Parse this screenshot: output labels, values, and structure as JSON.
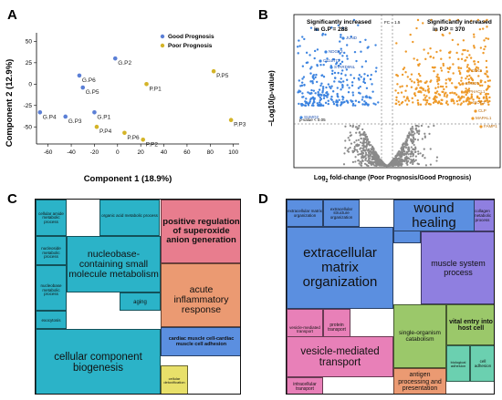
{
  "panels": {
    "a": "A",
    "b": "B",
    "c": "C",
    "d": "D"
  },
  "pca": {
    "xlabel": "Component 1 (18.9%)",
    "ylabel": "Component 2 (12.9%)",
    "xticks": [
      "-60",
      "-40",
      "-20",
      "0",
      "20",
      "40",
      "60",
      "80",
      "100"
    ],
    "yticks": [
      "50",
      "25",
      "0",
      "-25",
      "-50"
    ],
    "legend": [
      {
        "label": "Good Prognosis",
        "color": "#5b7fd6"
      },
      {
        "label": "Poor Prognosis",
        "color": "#d4b428"
      }
    ],
    "good": [
      {
        "label": "G.P2",
        "x": -2,
        "y": 30
      },
      {
        "label": "G.P6",
        "x": -33,
        "y": 10
      },
      {
        "label": "G.P5",
        "x": -30,
        "y": -4
      },
      {
        "label": "G.P4",
        "x": -67,
        "y": -33
      },
      {
        "label": "G.P3",
        "x": -45,
        "y": -38
      },
      {
        "label": "G.P1",
        "x": -20,
        "y": -33
      }
    ],
    "poor": [
      {
        "label": "P.P5",
        "x": 83,
        "y": 15
      },
      {
        "label": "P.P1",
        "x": 25,
        "y": 0
      },
      {
        "label": "P.P3",
        "x": 98,
        "y": -42
      },
      {
        "label": "P.P4",
        "x": -18,
        "y": -50
      },
      {
        "label": "P.P6",
        "x": 6,
        "y": -57
      },
      {
        "label": "P.P2",
        "x": 22,
        "y": -65
      }
    ]
  },
  "volcano": {
    "xlabel": "Log",
    "xlabel_sub": "2",
    "xlabel_rest": " fold-change (Poor Prognosis/Good Prognosis)",
    "ylabel": "−Log10(p-value)",
    "left_title": "Significantly increased",
    "left_sub": "in G.P = 288",
    "right_title": "Significantly increased",
    "right_sub": "in P.P = 370",
    "fc_label": "FC = 1.5",
    "pval_label": "p-value < 0.05",
    "left_genes": [
      "JUND",
      "NDGX3",
      "C11orf73",
      "STARD9NL",
      "SUMO2"
    ],
    "right_genes": [
      "CBX3",
      "SMS21",
      "PHACL1",
      "ISOC3",
      "CLP",
      "MAPAL1",
      "FAMP1"
    ],
    "colors": {
      "left": "#3d84e0",
      "right": "#ee9a2a",
      "ns": "#8a8a8a"
    }
  },
  "treemap_c": {
    "cells": [
      {
        "text": "cellular amide metabolic process",
        "c": "#2bb3c8"
      },
      {
        "text": "organic acid metabolic process",
        "c": "#2bb3c8"
      },
      {
        "text": "positive regulation of superoxide anion generation",
        "c": "#e87d8e"
      },
      {
        "text": "nucleoside metabolic process",
        "c": "#2bb3c8"
      },
      {
        "text": "nucleobase-containing small molecule metabolism",
        "c": "#2bb3c8"
      },
      {
        "text": "acute inflammatory response",
        "c": "#eb9a72"
      },
      {
        "text": "nucleobase metabolic process",
        "c": "#2bb3c8"
      },
      {
        "text": "aging",
        "c": "#2bb3c8"
      },
      {
        "text": "cardiac muscle cell-cardiac muscle cell adhesion",
        "c": "#5b8fe0"
      },
      {
        "text": "exocytosis",
        "c": "#2bb3c8"
      },
      {
        "text": "cellular component biogenesis",
        "c": "#2bb3c8"
      },
      {
        "text": "cellular detoxification",
        "c": "#e8e06a"
      }
    ]
  },
  "treemap_d": {
    "cells": [
      {
        "text": "extracellular matrix organization",
        "c": "#5b8fe0"
      },
      {
        "text": "extracellular structure organization",
        "c": "#5b8fe0"
      },
      {
        "text": "wound healing",
        "c": "#5b8fe0"
      },
      {
        "text": "muscle system process",
        "c": "#8f7fe0"
      },
      {
        "text": "collagen metabolic process",
        "c": "#8f7fe0"
      },
      {
        "text": "extracellular matrix organization",
        "c": "#5b8fe0"
      },
      {
        "text": "wound healing",
        "c": "#5b8fe0"
      },
      {
        "text": "muscle system process",
        "c": "#8f7fe0"
      },
      {
        "text": "vesicle-mediated transport",
        "c": "#e880b8"
      },
      {
        "text": "protein transport",
        "c": "#e880b8"
      },
      {
        "text": "single-organism catabolism",
        "c": "#9bc86a"
      },
      {
        "text": "vital entry into host cell",
        "c": "#9bc86a"
      },
      {
        "text": "vesicle-mediated transport",
        "c": "#e880b8"
      },
      {
        "text": "biological adhesion",
        "c": "#6bd0b0"
      },
      {
        "text": "cell adhesion",
        "c": "#6bd0b0"
      },
      {
        "text": "intracellular transport",
        "c": "#e880b8"
      },
      {
        "text": "antigen processing and presentation",
        "c": "#eb9a72"
      }
    ]
  }
}
